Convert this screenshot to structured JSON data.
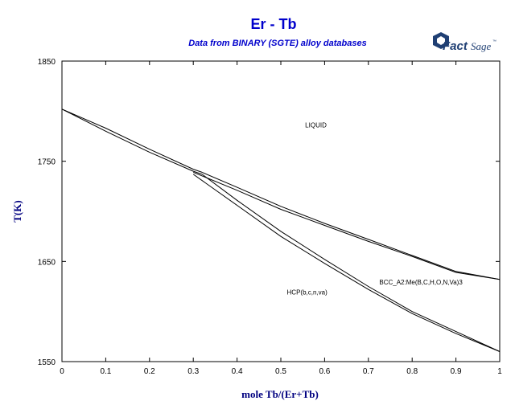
{
  "header": {
    "title": "Er - Tb",
    "subtitle": "Data from BINARY (SGTE) alloy databases"
  },
  "logo": {
    "fact_text": "Fact",
    "sage_text": "Sage",
    "tm_text": "™",
    "icon": "factsage-hex-logo-icon",
    "color": "#1f3f73"
  },
  "colors": {
    "title": "#0000cc",
    "axis_label": "#000080",
    "lines": "#000000"
  },
  "chart_data": {
    "type": "line",
    "title": "Er - Tb",
    "subtitle": "Data from BINARY (SGTE) alloy databases",
    "xlabel": "mole Tb/(Er+Tb)",
    "ylabel": "T(K)",
    "xlim": [
      0,
      1
    ],
    "ylim": [
      1550,
      1850
    ],
    "x_ticks": [
      0,
      0.1,
      0.2,
      0.3,
      0.4,
      0.5,
      0.6,
      0.7,
      0.8,
      0.9,
      1
    ],
    "x_tick_labels": [
      "0",
      "0.1",
      "0.2",
      "0.3",
      "0.4",
      "0.5",
      "0.6",
      "0.7",
      "0.8",
      "0.9",
      "1"
    ],
    "y_ticks": [
      1550,
      1650,
      1750,
      1850
    ],
    "y_tick_labels": [
      "1550",
      "1650",
      "1750",
      "1850"
    ],
    "grid": false,
    "series": [
      {
        "x": [
          0,
          0.1,
          0.2,
          0.3,
          0.32
        ],
        "y": [
          1802,
          1783,
          1762,
          1742,
          1739
        ]
      },
      {
        "x": [
          0,
          0.1,
          0.2,
          0.3,
          0.32
        ],
        "y": [
          1802,
          1780,
          1759,
          1740,
          1737
        ]
      },
      {
        "x": [
          0.32,
          0.4,
          0.5,
          0.6,
          0.7,
          0.8,
          0.9,
          1
        ],
        "y": [
          1739,
          1724,
          1705,
          1688,
          1672,
          1656,
          1640,
          1632
        ]
      },
      {
        "x": [
          0.3,
          0.4,
          0.5,
          0.6,
          0.7,
          0.8,
          0.9,
          1
        ],
        "y": [
          1739,
          1721,
          1702,
          1686,
          1670,
          1655,
          1639,
          1632
        ]
      },
      {
        "x": [
          0.3,
          0.4,
          0.5,
          0.6,
          0.7,
          0.8,
          0.9,
          1
        ],
        "y": [
          1737,
          1706,
          1675,
          1648,
          1622,
          1598,
          1578,
          1560
        ]
      },
      {
        "x": [
          0.32,
          0.4,
          0.5,
          0.6,
          0.7,
          0.8,
          0.9,
          1
        ],
        "y": [
          1737,
          1711,
          1680,
          1652,
          1625,
          1600,
          1580,
          1560
        ]
      }
    ],
    "annotations": [
      {
        "text": "LIQUID",
        "x": 0.58,
        "y": 1784
      },
      {
        "text": "HCP(b,c,n,va)",
        "x": 0.56,
        "y": 1617
      },
      {
        "text": "BCC_A2:Me(B,C,H,O,N,Va)3",
        "x": 0.82,
        "y": 1627
      }
    ]
  }
}
